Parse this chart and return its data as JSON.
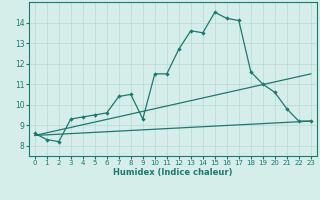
{
  "xlabel": "Humidex (Indice chaleur)",
  "background_color": "#d6eeea",
  "line_color": "#1a7a6e",
  "grid_color": "#b8d8d4",
  "xlim": [
    -0.5,
    23.5
  ],
  "ylim": [
    7.5,
    15.0
  ],
  "xticks": [
    0,
    1,
    2,
    3,
    4,
    5,
    6,
    7,
    8,
    9,
    10,
    11,
    12,
    13,
    14,
    15,
    16,
    17,
    18,
    19,
    20,
    21,
    22,
    23
  ],
  "yticks": [
    8,
    9,
    10,
    11,
    12,
    13,
    14
  ],
  "line1_x": [
    0,
    1,
    2,
    3,
    4,
    5,
    6,
    7,
    8,
    9,
    10,
    11,
    12,
    13,
    14,
    15,
    16,
    17,
    18,
    19,
    20,
    21,
    22,
    23
  ],
  "line1_y": [
    8.6,
    8.3,
    8.2,
    9.3,
    9.4,
    9.5,
    9.6,
    10.4,
    10.5,
    9.3,
    11.5,
    11.5,
    12.7,
    13.6,
    13.5,
    14.5,
    14.2,
    14.1,
    11.6,
    11.0,
    10.6,
    9.8,
    9.2,
    9.2
  ],
  "line2_x": [
    0,
    23
  ],
  "line2_y": [
    8.5,
    9.2
  ],
  "line3_x": [
    0,
    23
  ],
  "line3_y": [
    8.5,
    11.5
  ]
}
